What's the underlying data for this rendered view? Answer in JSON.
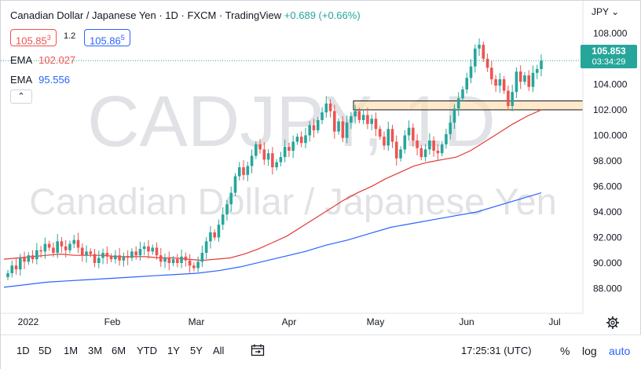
{
  "header": {
    "title": "Canadian Dollar / Japanese Yen · 1D · FXCM · TradingView",
    "change": "+0.689 (+0.66%)",
    "sell_price": "105.85",
    "sell_price_sup": "3",
    "spread": "1.2",
    "buy_price": "105.86",
    "buy_price_sup": "5",
    "ema1_label": "EMA",
    "ema1_value": "102.027",
    "ema2_label": "EMA",
    "ema2_value": "95.556",
    "collapse_icon": "chevron-up-icon"
  },
  "axis": {
    "currency": "JPY",
    "last_price": "105.853",
    "countdown": "03:34:29"
  },
  "watermark": {
    "symbol": "CADJPY, 1D",
    "name": "Canadian Dollar / Japanese Yen"
  },
  "bottom": {
    "ranges": [
      "1D",
      "5D",
      "1M",
      "3M",
      "6M",
      "YTD",
      "1Y",
      "5Y",
      "All"
    ],
    "compare_icon": "calendar-range-icon",
    "time": "17:25:31 (UTC)",
    "percent": "%",
    "log": "log",
    "auto": "auto",
    "settings_icon": "gear-icon"
  },
  "colors": {
    "up": "#26a69a",
    "down": "#ef5350",
    "ema_fast": "#e53935",
    "ema_slow": "#2962ff",
    "zone_fill": "#ffe0b2"
  },
  "chart_data": {
    "type": "candlestick",
    "symbol": "CADJPY",
    "timeframe": "1D",
    "y_ticks": [
      88,
      90,
      92,
      94,
      96,
      98,
      100,
      102,
      104,
      106,
      108
    ],
    "y_tick_labels": [
      "88.000",
      "90.000",
      "92.000",
      "94.000",
      "96.000",
      "98.000",
      "100.000",
      "102.000",
      "104.000",
      "106.000",
      "108.000"
    ],
    "ylim": [
      86.8,
      109.5
    ],
    "x_ticks": [
      "2022",
      "Feb",
      "Mar",
      "Apr",
      "May",
      "Jun",
      "Jul"
    ],
    "horizontal_zone": [
      102.0,
      102.7
    ],
    "last_price": 105.853,
    "closes": [
      89.2,
      89.8,
      89.5,
      90.4,
      90.1,
      90.6,
      90.3,
      91.0,
      90.9,
      91.5,
      91.2,
      90.8,
      91.7,
      91.3,
      91.0,
      91.5,
      91.8,
      91.2,
      90.6,
      90.9,
      90.7,
      90.0,
      90.4,
      90.8,
      90.5,
      90.3,
      90.6,
      90.2,
      90.5,
      90.4,
      90.9,
      90.6,
      91.1,
      91.3,
      90.9,
      91.2,
      90.6,
      90.1,
      90.4,
      90.0,
      90.3,
      90.0,
      90.5,
      90.2,
      89.8,
      89.6,
      90.1,
      90.8,
      91.7,
      92.4,
      92.0,
      93.0,
      93.8,
      94.6,
      95.5,
      96.8,
      97.5,
      96.9,
      97.6,
      98.4,
      99.3,
      98.9,
      98.1,
      98.6,
      97.5,
      97.9,
      98.3,
      99.1,
      98.8,
      99.5,
      99.9,
      99.4,
      100.0,
      100.8,
      100.4,
      101.2,
      101.8,
      102.5,
      101.9,
      100.3,
      101.1,
      99.8,
      101.0,
      101.5,
      101.9,
      101.2,
      101.6,
      100.9,
      101.3,
      100.5,
      99.9,
      99.2,
      100.5,
      99.5,
      98.2,
      98.9,
      100.0,
      100.6,
      99.6,
      99.0,
      98.3,
      98.9,
      99.6,
      98.8,
      98.6,
      99.3,
      100.1,
      101.0,
      102.1,
      102.9,
      103.6,
      104.5,
      105.4,
      106.8,
      107.1,
      106.0,
      105.3,
      104.4,
      103.9,
      104.4,
      103.5,
      102.3,
      103.4,
      105.0,
      104.2,
      104.7,
      103.8,
      104.9,
      105.2,
      105.853
    ],
    "ema_fast": [
      90.3,
      90.4,
      90.5,
      90.6,
      90.7,
      90.6,
      90.6,
      90.6,
      90.5,
      90.5,
      90.5,
      90.4,
      90.4,
      90.3,
      90.2,
      90.3,
      90.4,
      90.7,
      91.1,
      91.6,
      92.1,
      92.8,
      93.5,
      94.2,
      94.9,
      95.5,
      96.0,
      96.6,
      97.1,
      97.6,
      97.9,
      98.1,
      98.3,
      98.8,
      99.5,
      100.2,
      100.9,
      101.5,
      102.0
    ],
    "ema_slow": [
      88.1,
      88.3,
      88.5,
      88.6,
      88.7,
      88.8,
      88.9,
      89.0,
      89.1,
      89.2,
      89.4,
      89.7,
      90.1,
      90.5,
      90.9,
      91.4,
      91.8,
      92.3,
      92.8,
      93.1,
      93.4,
      93.7,
      94.0,
      94.5,
      95.0,
      95.5
    ]
  }
}
